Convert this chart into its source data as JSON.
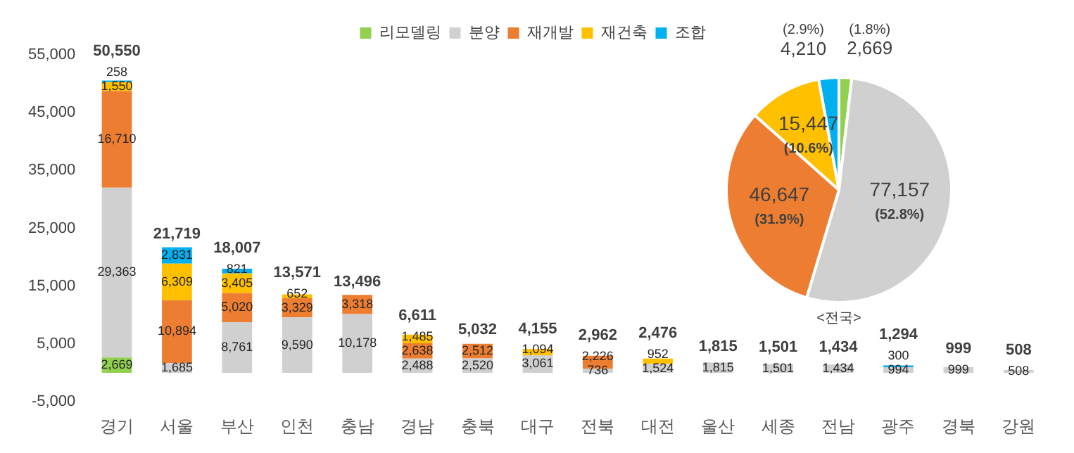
{
  "chart_data": [
    {
      "type": "bar",
      "stacked": true,
      "categories": [
        "경기",
        "서울",
        "부산",
        "인천",
        "충남",
        "경남",
        "충북",
        "대구",
        "전북",
        "대전",
        "울산",
        "세종",
        "전남",
        "광주",
        "경북",
        "강원"
      ],
      "series": [
        {
          "name": "리모델링",
          "color": "#92d050",
          "values": [
            2669,
            null,
            null,
            null,
            null,
            null,
            null,
            null,
            null,
            null,
            null,
            null,
            null,
            null,
            null,
            null
          ],
          "value_labels": [
            "2,669",
            null,
            null,
            null,
            null,
            null,
            null,
            null,
            null,
            null,
            null,
            null,
            null,
            null,
            null,
            null
          ]
        },
        {
          "name": "분양",
          "color": "#d0d0d0",
          "values": [
            29363,
            1685,
            8761,
            9590,
            10178,
            2488,
            2520,
            3061,
            736,
            1524,
            1815,
            1501,
            1434,
            994,
            999,
            508
          ],
          "value_labels": [
            "29,363",
            "1,685",
            "8,761",
            "9,590",
            "10,178",
            "2,488",
            "2,520",
            "3,061",
            "736",
            "1,524",
            "1,815",
            "1,501",
            "1,434",
            "994",
            "999",
            "508"
          ]
        },
        {
          "name": "재개발",
          "color": "#ed7d31",
          "values": [
            16710,
            10894,
            5020,
            3329,
            3318,
            2638,
            2512,
            null,
            2226,
            null,
            null,
            null,
            null,
            null,
            null,
            null
          ],
          "value_labels": [
            "16,710",
            "10,894",
            "5,020",
            "3,329",
            "3,318",
            "2,638",
            "2,512",
            null,
            "2,226",
            null,
            null,
            null,
            null,
            null,
            null,
            null
          ]
        },
        {
          "name": "재건축",
          "color": "#ffc000",
          "values": [
            1550,
            6309,
            3405,
            652,
            null,
            1485,
            null,
            1094,
            null,
            952,
            null,
            null,
            null,
            null,
            null,
            null
          ],
          "value_labels": [
            "1,550",
            "6,309",
            "3,405",
            "652",
            null,
            "1,485",
            null,
            "1,094",
            null,
            "952",
            null,
            null,
            null,
            null,
            null,
            null
          ]
        },
        {
          "name": "조합",
          "color": "#00b0f0",
          "values": [
            258,
            2831,
            821,
            null,
            null,
            null,
            null,
            null,
            null,
            null,
            null,
            null,
            null,
            300,
            null,
            null
          ],
          "value_labels": [
            "258",
            "2,831",
            "821",
            null,
            null,
            null,
            null,
            null,
            null,
            null,
            null,
            null,
            null,
            "300",
            null,
            null
          ]
        }
      ],
      "totals": [
        "50,550",
        "21,719",
        "18,007",
        "13,571",
        "13,496",
        "6,611",
        "5,032",
        "4,155",
        "2,962",
        "2,476",
        "1,815",
        "1,501",
        "1,434",
        "1,294",
        "999",
        "508"
      ],
      "ylim": [
        -5000,
        55000
      ],
      "yticks": [
        {
          "value": -5000,
          "label": "-5,000"
        },
        {
          "value": 5000,
          "label": "5,000"
        },
        {
          "value": 15000,
          "label": "15,000"
        },
        {
          "value": 25000,
          "label": "25,000"
        },
        {
          "value": 35000,
          "label": "35,000"
        },
        {
          "value": 45000,
          "label": "45,000"
        },
        {
          "value": 55000,
          "label": "55,000"
        }
      ],
      "grid": false,
      "legend": "top"
    },
    {
      "type": "pie",
      "title": "<전국>",
      "categories": [
        null,
        null,
        null,
        null,
        null
      ],
      "values": [
        2669,
        77157,
        46647,
        15447,
        4210
      ],
      "colors": [
        "#92d050",
        "#d0d0d0",
        "#ed7d31",
        "#ffc000",
        "#00b0f0"
      ],
      "value_labels": [
        "(1.8%)\n2,669",
        "77,157\n(52.8%)",
        "46,647\n(31.9%)",
        "15,447\n(10.6%)",
        "(2.9%)\n4,210"
      ]
    }
  ]
}
